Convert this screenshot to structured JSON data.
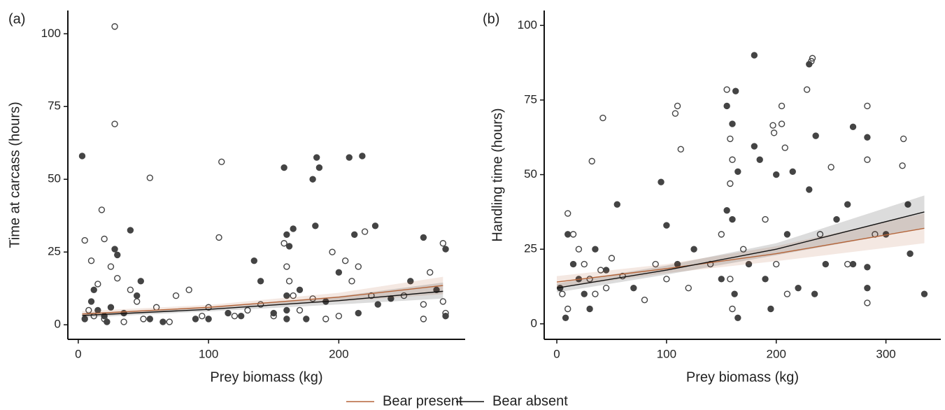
{
  "legend": [
    {
      "name": "Bear present",
      "color": "#b5653a"
    },
    {
      "name": "Bear absent",
      "color": "#111111"
    }
  ],
  "chart_data": [
    {
      "type": "scatter",
      "panel_label": "(a)",
      "x_label": "Prey biomass (kg)",
      "y_label": "Time at carcass (hours)",
      "xlim": [
        -8,
        297
      ],
      "ylim": [
        -5,
        108
      ],
      "xticks": [
        0,
        100,
        200
      ],
      "yticks": [
        0,
        25,
        50,
        75,
        100
      ],
      "points": [
        {
          "marker": "open",
          "x": [
            28,
            28,
            55,
            110,
            108,
            18,
            5,
            20,
            10,
            25,
            30,
            15,
            40,
            45,
            60,
            75,
            85,
            95,
            120,
            130,
            150,
            158,
            160,
            162,
            165,
            180,
            190,
            195,
            205,
            210,
            215,
            220,
            225,
            250,
            265,
            270,
            280,
            280,
            282,
            265,
            8,
            12,
            20,
            35,
            50,
            70,
            100,
            140,
            170,
            200
          ],
          "y": [
            102.5,
            69,
            50.5,
            56,
            30,
            39.5,
            29,
            29.5,
            22,
            20,
            16,
            14,
            12,
            8,
            6,
            10,
            12,
            3,
            3,
            5,
            3,
            28,
            20,
            15,
            10,
            9,
            2,
            25,
            22,
            15,
            20,
            32,
            10,
            10,
            7,
            18,
            28,
            8,
            4,
            2,
            5,
            3,
            2,
            1,
            2,
            1,
            6,
            7,
            5,
            3
          ]
        },
        {
          "marker": "filled",
          "x": [
            3,
            40,
            28,
            30,
            10,
            15,
            20,
            25,
            35,
            45,
            55,
            65,
            90,
            115,
            135,
            140,
            150,
            158,
            160,
            162,
            165,
            160,
            160,
            160,
            180,
            183,
            185,
            182,
            208,
            218,
            212,
            228,
            200,
            190,
            175,
            230,
            255,
            265,
            275,
            282,
            282,
            12,
            5,
            22,
            48,
            100,
            125,
            170,
            215,
            240
          ],
          "y": [
            58,
            32.5,
            26,
            24,
            8,
            5,
            3,
            6,
            4,
            10,
            2,
            1,
            2,
            4,
            22,
            15,
            4,
            54,
            31,
            27,
            33,
            10,
            5,
            2,
            50,
            57.5,
            54,
            34,
            57.5,
            58,
            31,
            34,
            18,
            8,
            2,
            7,
            15,
            30,
            12,
            26,
            3,
            12,
            2,
            1,
            15,
            2,
            3,
            12,
            4,
            9
          ]
        }
      ],
      "series": [
        {
          "color": "#b5653a",
          "x": [
            3,
            100,
            200,
            280
          ],
          "values": [
            3.7,
            6.0,
            9.5,
            13.5
          ],
          "lower": [
            2.8,
            5.2,
            8.0,
            10.5
          ],
          "upper": [
            4.7,
            6.8,
            11.0,
            16.5
          ]
        },
        {
          "color": "#111111",
          "x": [
            3,
            100,
            200,
            280
          ],
          "values": [
            3.2,
            5.3,
            8.3,
            11.5
          ],
          "lower": [
            2.4,
            4.6,
            7.0,
            9.0
          ],
          "upper": [
            4.0,
            6.0,
            9.8,
            14.5
          ]
        }
      ]
    },
    {
      "type": "scatter",
      "panel_label": "(b)",
      "x_label": "Prey biomass (kg)",
      "y_label": "Handling time (hours)",
      "xlim": [
        -11.5,
        350
      ],
      "ylim": [
        -5.2,
        105
      ],
      "xticks": [
        0,
        100,
        200,
        300
      ],
      "yticks": [
        0,
        25,
        50,
        75,
        100
      ],
      "points": [
        {
          "marker": "open",
          "x": [
            32,
            42,
            108,
            110,
            113,
            155,
            158,
            160,
            158,
            232,
            233,
            228,
            205,
            197,
            198,
            205,
            208,
            250,
            283,
            316,
            315,
            283,
            10,
            15,
            20,
            25,
            30,
            35,
            40,
            45,
            5,
            10,
            50,
            60,
            80,
            90,
            100,
            120,
            140,
            150,
            158,
            160,
            170,
            190,
            200,
            210,
            240,
            265,
            283,
            290
          ],
          "y": [
            54.5,
            69,
            70.5,
            73,
            58.5,
            78.5,
            62,
            55,
            47,
            88,
            89,
            78.5,
            73,
            66.5,
            64,
            67,
            59,
            52.5,
            73,
            62,
            53,
            55,
            37,
            30,
            25,
            20,
            15,
            10,
            18,
            12,
            10,
            5,
            22,
            16,
            8,
            20,
            15,
            12,
            20,
            30,
            15,
            5,
            25,
            35,
            20,
            10,
            30,
            20,
            7,
            30
          ]
        },
        {
          "marker": "filled",
          "x": [
            180,
            230,
            163,
            155,
            160,
            165,
            180,
            185,
            200,
            215,
            236,
            270,
            283,
            320,
            322,
            335,
            95,
            100,
            55,
            10,
            15,
            20,
            25,
            30,
            35,
            45,
            8,
            3,
            70,
            110,
            125,
            150,
            160,
            162,
            165,
            175,
            195,
            210,
            220,
            235,
            245,
            255,
            265,
            270,
            283,
            283,
            300,
            230,
            190,
            155
          ],
          "y": [
            90,
            87,
            78,
            73,
            67,
            51,
            59.5,
            55,
            50,
            51,
            63,
            66,
            62.5,
            40,
            23.5,
            10,
            47.5,
            33,
            40,
            30,
            20,
            15,
            10,
            5,
            25,
            18,
            2,
            12,
            12,
            20,
            25,
            15,
            35,
            10,
            2,
            20,
            5,
            30,
            12,
            10,
            20,
            35,
            40,
            20,
            12,
            19,
            30,
            45,
            15,
            38
          ]
        }
      ],
      "series": [
        {
          "color": "#b5653a",
          "x": [
            0,
            100,
            200,
            335
          ],
          "values": [
            14,
            18.5,
            23.5,
            32
          ],
          "lower": [
            12,
            17,
            21,
            27
          ],
          "upper": [
            16,
            20,
            26,
            37
          ]
        },
        {
          "color": "#111111",
          "x": [
            0,
            100,
            200,
            335
          ],
          "values": [
            12,
            18,
            25,
            37.5
          ],
          "lower": [
            10.5,
            16.5,
            23,
            32
          ],
          "upper": [
            13.5,
            19.5,
            27,
            43
          ]
        }
      ]
    }
  ]
}
